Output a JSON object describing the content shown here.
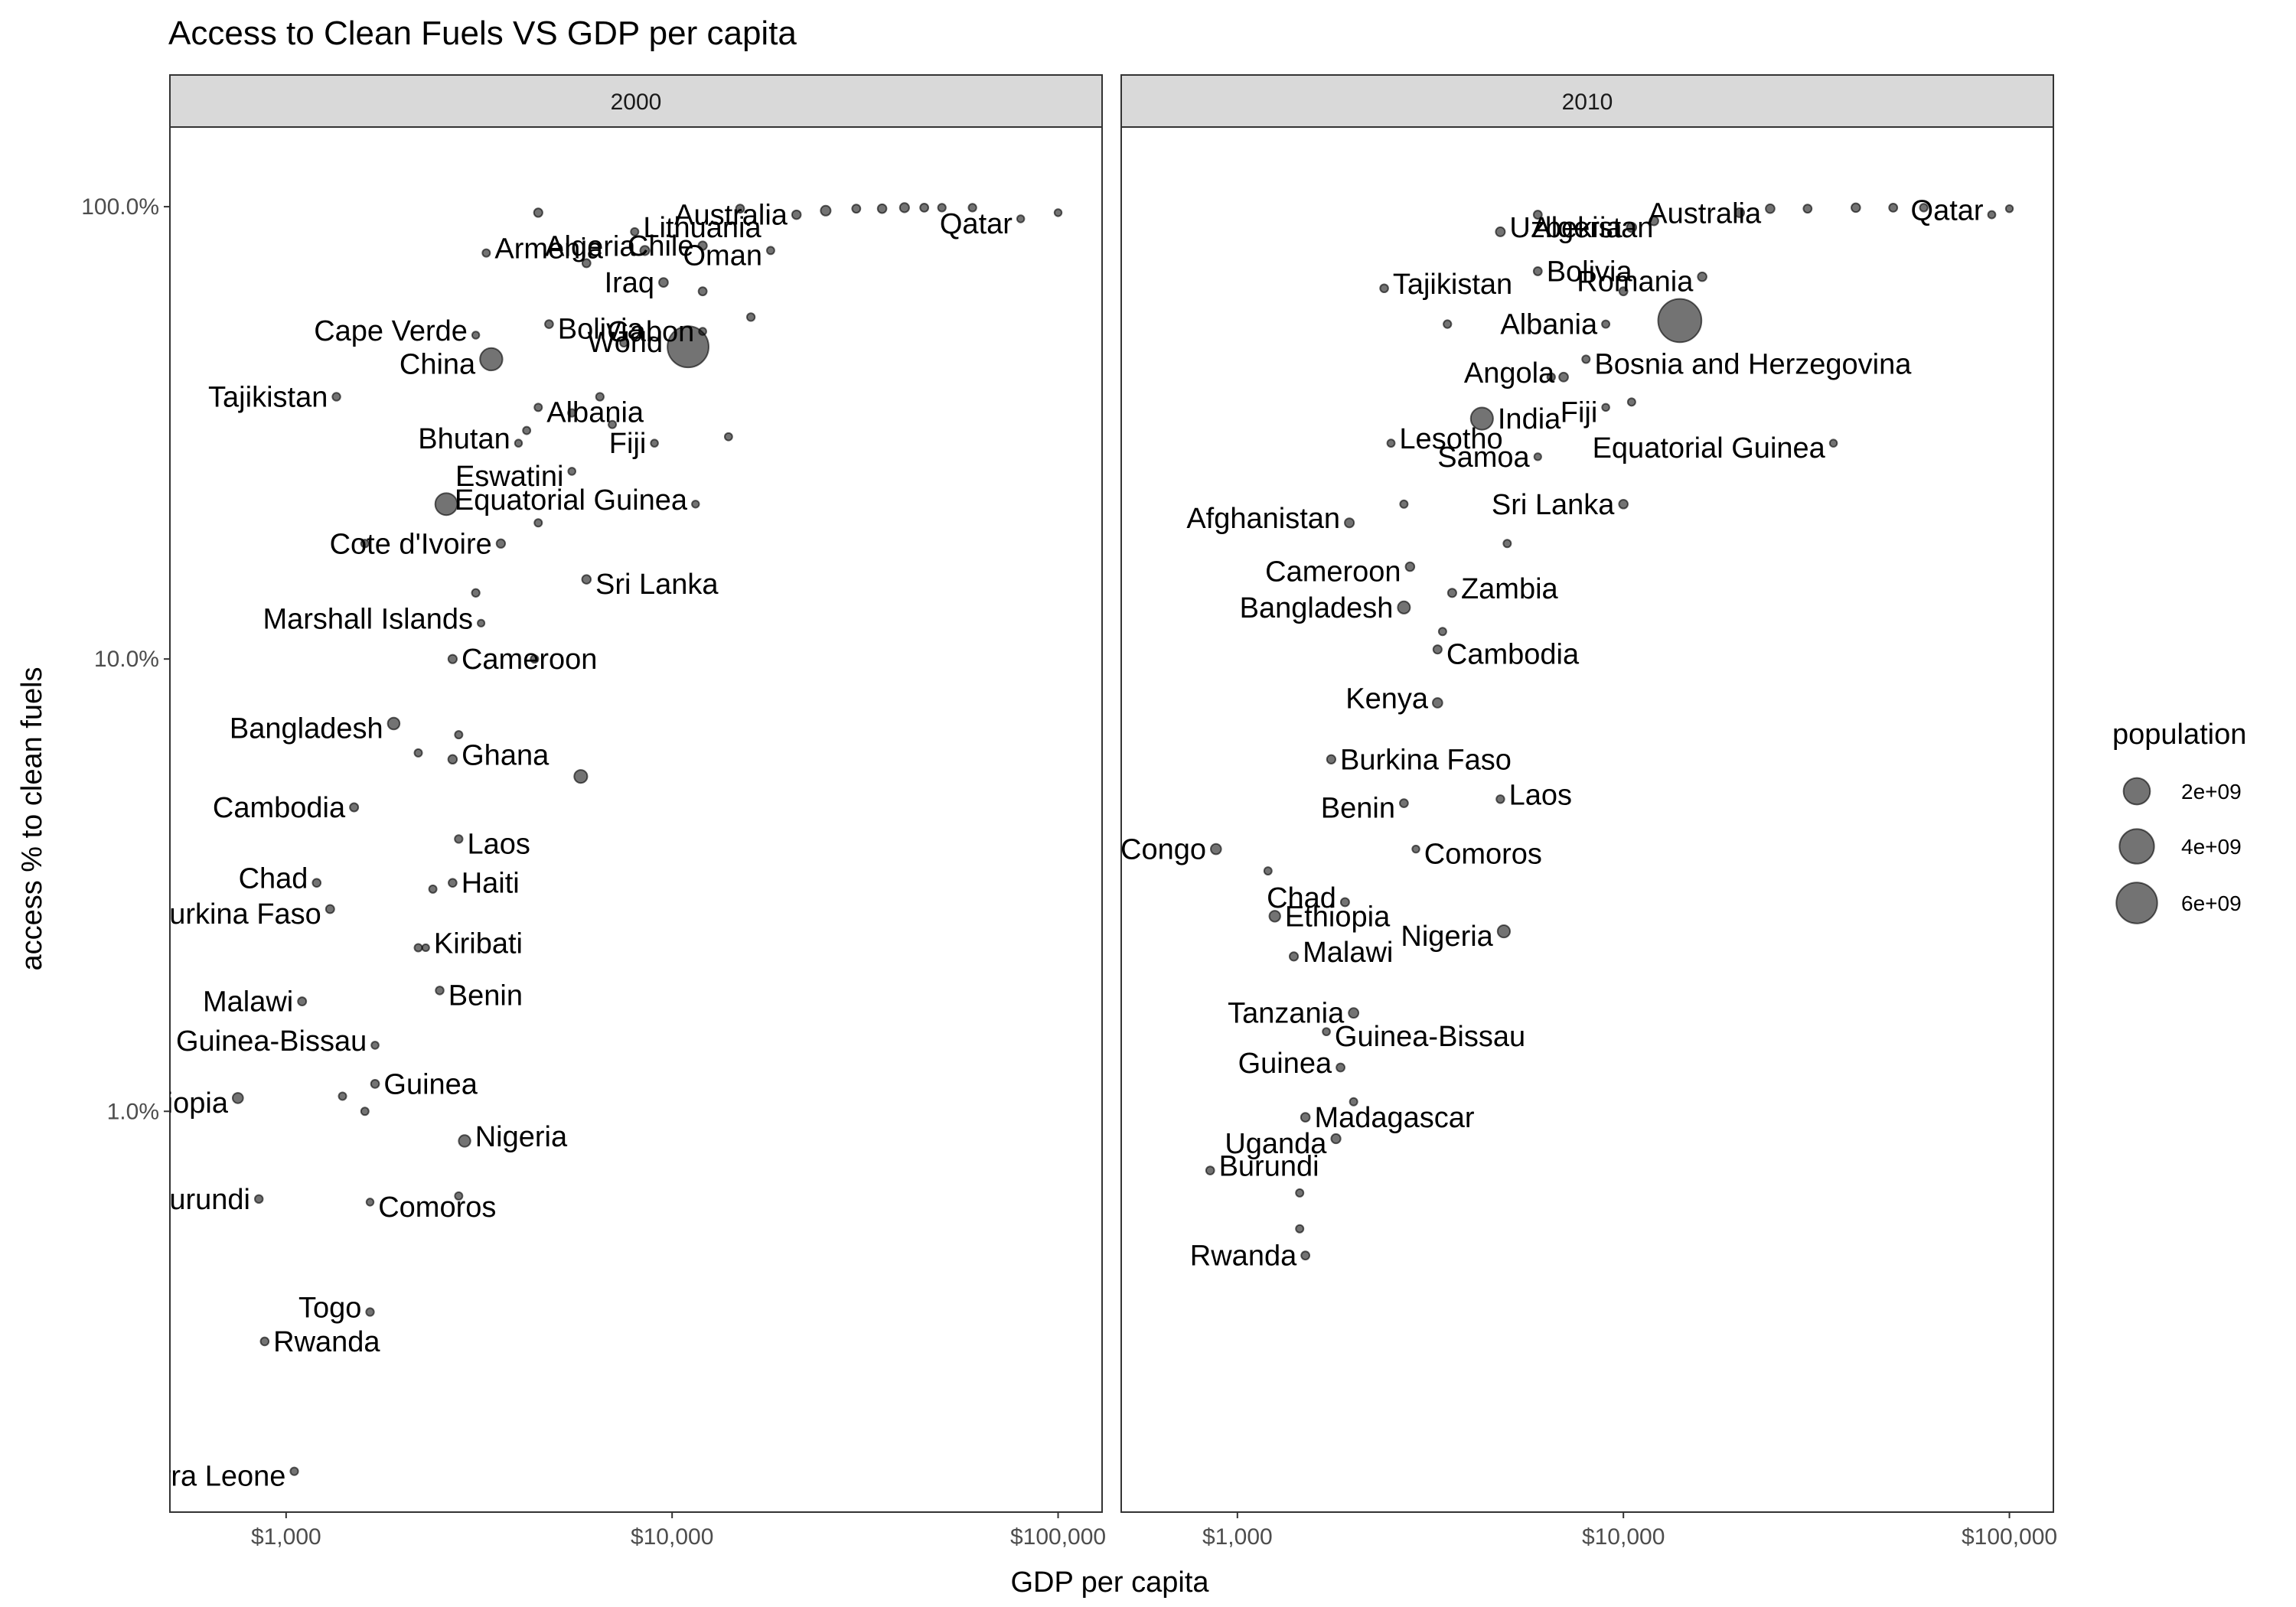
{
  "chart_data": {
    "type": "scatter",
    "title": "Access to Clean Fuels VS GDP per capita",
    "xlabel": "GDP per capita",
    "ylabel": "access % to clean fuels",
    "x_scale": "log",
    "y_scale": "log",
    "xlim": [
      500,
      130000
    ],
    "ylim": [
      0.13,
      150
    ],
    "x_ticks": [
      {
        "value": 1000,
        "label": "$1,000"
      },
      {
        "value": 10000,
        "label": "$10,000"
      },
      {
        "value": 100000,
        "label": "$100,000"
      }
    ],
    "y_ticks": [
      {
        "value": 1,
        "label": "1.0%"
      },
      {
        "value": 10,
        "label": "10.0%"
      },
      {
        "value": 100,
        "label": "100.0%"
      }
    ],
    "grid": false,
    "legend": {
      "title": "population",
      "placement": "right",
      "entries": [
        {
          "label": "2e+09",
          "value": 2000000000
        },
        {
          "label": "4e+09",
          "value": 4000000000
        },
        {
          "label": "6e+09",
          "value": 6000000000
        }
      ]
    },
    "panels": [
      {
        "strip": "2000",
        "points": [
          {
            "label": "Lithuania",
            "x": 8000,
            "y": 88,
            "size": 3500000
          },
          {
            "label": "Australia",
            "x": 21000,
            "y": 96,
            "size": 19000000
          },
          {
            "label": "Qatar",
            "x": 80000,
            "y": 94,
            "size": 600000
          },
          {
            "label": "Algeria",
            "x": 8500,
            "y": 80,
            "size": 31000000
          },
          {
            "label": "Chile",
            "x": 12000,
            "y": 82,
            "size": 15000000
          },
          {
            "label": "Oman",
            "x": 18000,
            "y": 80,
            "size": 2300000
          },
          {
            "label": "Armenia",
            "x": 3300,
            "y": 79,
            "size": 3100000
          },
          {
            "label": "Iraq",
            "x": 9500,
            "y": 68,
            "size": 23000000
          },
          {
            "label": "Bolivia",
            "x": 4800,
            "y": 55,
            "size": 8300000
          },
          {
            "label": "Cape Verde",
            "x": 3100,
            "y": 52,
            "size": 450000
          },
          {
            "label": "Gabon",
            "x": 12000,
            "y": 53,
            "size": 1200000
          },
          {
            "label": "China",
            "x": 3400,
            "y": 46,
            "size": 1260000000
          },
          {
            "label": "World",
            "x": 11000,
            "y": 49,
            "size": 6100000000
          },
          {
            "label": "Tajikistan",
            "x": 1350,
            "y": 38,
            "size": 6200000
          },
          {
            "label": "Albania",
            "x": 4500,
            "y": 36,
            "size": 3100000
          },
          {
            "label": "Bhutan",
            "x": 4000,
            "y": 30,
            "size": 590000
          },
          {
            "label": "Fiji",
            "x": 9000,
            "y": 30,
            "size": 800000
          },
          {
            "label": "Eswatini",
            "x": 5500,
            "y": 26,
            "size": 1000000
          },
          {
            "label": "Equatorial Guinea",
            "x": 11500,
            "y": 22,
            "size": 500000
          },
          {
            "label": "Cote d'Ivoire",
            "x": 3600,
            "y": 18,
            "size": 16000000
          },
          {
            "label": "Sri Lanka",
            "x": 6000,
            "y": 15,
            "size": 19000000
          },
          {
            "label": "Marshall Islands",
            "x": 3200,
            "y": 12,
            "size": 50000
          },
          {
            "label": "Cameroon",
            "x": 2700,
            "y": 10,
            "size": 15000000
          },
          {
            "label": "Bangladesh",
            "x": 1900,
            "y": 7.2,
            "size": 130000000
          },
          {
            "label": "Ghana",
            "x": 2700,
            "y": 6,
            "size": 19000000
          },
          {
            "label": "Cambodia",
            "x": 1500,
            "y": 4.7,
            "size": 12000000
          },
          {
            "label": "Laos",
            "x": 2800,
            "y": 4,
            "size": 5300000
          },
          {
            "label": "Chad",
            "x": 1200,
            "y": 3.2,
            "size": 8300000
          },
          {
            "label": "Haiti",
            "x": 2700,
            "y": 3.2,
            "size": 8400000
          },
          {
            "label": "Burkina Faso",
            "x": 1300,
            "y": 2.8,
            "size": 11600000
          },
          {
            "label": "Kiribati",
            "x": 2300,
            "y": 2.3,
            "size": 85000
          },
          {
            "label": "Malawi",
            "x": 1100,
            "y": 1.75,
            "size": 11000000
          },
          {
            "label": "Benin",
            "x": 2500,
            "y": 1.85,
            "size": 6900000
          },
          {
            "label": "Guinea-Bissau",
            "x": 1700,
            "y": 1.4,
            "size": 1200000
          },
          {
            "label": "Guinea",
            "x": 1700,
            "y": 1.15,
            "size": 8800000
          },
          {
            "label": "Ethiopia",
            "x": 750,
            "y": 1.07,
            "size": 66000000
          },
          {
            "label": "Nigeria",
            "x": 2900,
            "y": 0.86,
            "size": 122000000
          },
          {
            "label": "Burundi",
            "x": 850,
            "y": 0.64,
            "size": 6300000
          },
          {
            "label": "Comoros",
            "x": 1650,
            "y": 0.63,
            "size": 540000
          },
          {
            "label": "Togo",
            "x": 1650,
            "y": 0.36,
            "size": 5000000
          },
          {
            "label": "Rwanda",
            "x": 880,
            "y": 0.31,
            "size": 8000000
          },
          {
            "label": "Sierra Leone",
            "x": 1050,
            "y": 0.16,
            "size": 4100000
          },
          {
            "x": 30000,
            "y": 99,
            "size": 10000000
          },
          {
            "x": 35000,
            "y": 99,
            "size": 20000000
          },
          {
            "x": 40000,
            "y": 99.5,
            "size": 30000000
          },
          {
            "x": 45000,
            "y": 99.5,
            "size": 10000000
          },
          {
            "x": 50000,
            "y": 99.5,
            "size": 5000000
          },
          {
            "x": 60000,
            "y": 99.5,
            "size": 5000000
          },
          {
            "x": 25000,
            "y": 98,
            "size": 50000000
          },
          {
            "x": 15000,
            "y": 99,
            "size": 10000000
          },
          {
            "x": 100000,
            "y": 97,
            "size": 500000
          },
          {
            "x": 4500,
            "y": 97,
            "size": 15000000
          },
          {
            "x": 6000,
            "y": 75,
            "size": 10000000
          },
          {
            "x": 12000,
            "y": 65,
            "size": 10000000
          },
          {
            "x": 16000,
            "y": 57,
            "size": 5000000
          },
          {
            "x": 7500,
            "y": 50,
            "size": 4000000
          },
          {
            "x": 6500,
            "y": 38,
            "size": 5000000
          },
          {
            "x": 5500,
            "y": 35,
            "size": 4000000
          },
          {
            "x": 7000,
            "y": 33,
            "size": 3000000
          },
          {
            "x": 4200,
            "y": 32,
            "size": 2000000
          },
          {
            "x": 14000,
            "y": 31,
            "size": 2000000
          },
          {
            "x": 4500,
            "y": 20,
            "size": 3000000
          },
          {
            "x": 1600,
            "y": 18,
            "size": 5000000
          },
          {
            "x": 2600,
            "y": 22,
            "size": 1200000000
          },
          {
            "x": 3100,
            "y": 14,
            "size": 5000000
          },
          {
            "x": 4400,
            "y": 10,
            "size": 4000000
          },
          {
            "x": 5800,
            "y": 5.5,
            "size": 200000000
          },
          {
            "x": 2800,
            "y": 6.8,
            "size": 3000000
          },
          {
            "x": 2200,
            "y": 6.2,
            "size": 3000000
          },
          {
            "x": 2400,
            "y": 3.1,
            "size": 3000000
          },
          {
            "x": 2200,
            "y": 2.3,
            "size": 3000000
          },
          {
            "x": 1400,
            "y": 1.08,
            "size": 3000000
          },
          {
            "x": 1600,
            "y": 1.0,
            "size": 3000000
          },
          {
            "x": 2800,
            "y": 0.65,
            "size": 3000000
          }
        ]
      },
      {
        "strip": "2010",
        "points": [
          {
            "label": "Uzbekistan",
            "x": 4800,
            "y": 88,
            "size": 28000000
          },
          {
            "label": "Algeria",
            "x": 10500,
            "y": 90,
            "size": 36000000
          },
          {
            "label": "Australia",
            "x": 24000,
            "y": 99,
            "size": 22000000
          },
          {
            "label": "Qatar",
            "x": 90000,
            "y": 96,
            "size": 1800000
          },
          {
            "label": "Bolivia",
            "x": 6000,
            "y": 72,
            "size": 10000000
          },
          {
            "label": "Romania",
            "x": 16000,
            "y": 70,
            "size": 20000000
          },
          {
            "label": "Tajikistan",
            "x": 2400,
            "y": 66,
            "size": 7500000
          },
          {
            "label": "Albania",
            "x": 9000,
            "y": 55,
            "size": 2900000
          },
          {
            "label": "Bosnia and Herzegovina",
            "x": 8000,
            "y": 46,
            "size": 3700000
          },
          {
            "label": "Angola",
            "x": 7000,
            "y": 42,
            "size": 23000000
          },
          {
            "label": "India",
            "x": 4300,
            "y": 34,
            "size": 1230000000
          },
          {
            "label": "Fiji",
            "x": 9000,
            "y": 36,
            "size": 860000
          },
          {
            "label": "Lesotho",
            "x": 2500,
            "y": 30,
            "size": 2000000
          },
          {
            "label": "Samoa",
            "x": 6000,
            "y": 28,
            "size": 190000
          },
          {
            "label": "Equatorial Guinea",
            "x": 35000,
            "y": 30,
            "size": 950000
          },
          {
            "label": "Afghanistan",
            "x": 1950,
            "y": 20,
            "size": 29000000
          },
          {
            "label": "Sri Lanka",
            "x": 10000,
            "y": 22,
            "size": 20000000
          },
          {
            "label": "Cameroon",
            "x": 2800,
            "y": 16,
            "size": 20000000
          },
          {
            "label": "Zambia",
            "x": 3600,
            "y": 14,
            "size": 13600000
          },
          {
            "label": "Bangladesh",
            "x": 2700,
            "y": 13,
            "size": 150000000
          },
          {
            "label": "Cambodia",
            "x": 3300,
            "y": 10.5,
            "size": 14000000
          },
          {
            "label": "Kenya",
            "x": 3300,
            "y": 8,
            "size": 41000000
          },
          {
            "label": "Burkina Faso",
            "x": 1750,
            "y": 6,
            "size": 15600000
          },
          {
            "label": "Benin",
            "x": 2700,
            "y": 4.8,
            "size": 9200000
          },
          {
            "label": "Laos",
            "x": 4800,
            "y": 4.9,
            "size": 6300000
          },
          {
            "label": "Congo",
            "x": 880,
            "y": 3.8,
            "size": 64000000
          },
          {
            "label": "Comoros",
            "x": 2900,
            "y": 3.8,
            "size": 690000
          },
          {
            "label": "Chad",
            "x": 1900,
            "y": 2.9,
            "size": 11900000
          },
          {
            "label": "Ethiopia",
            "x": 1250,
            "y": 2.7,
            "size": 87000000
          },
          {
            "label": "Nigeria",
            "x": 4900,
            "y": 2.5,
            "size": 158000000
          },
          {
            "label": "Malawi",
            "x": 1400,
            "y": 2.2,
            "size": 14500000
          },
          {
            "label": "Tanzania",
            "x": 2000,
            "y": 1.65,
            "size": 45000000
          },
          {
            "label": "Guinea-Bissau",
            "x": 1700,
            "y": 1.5,
            "size": 1500000
          },
          {
            "label": "Guinea",
            "x": 1850,
            "y": 1.25,
            "size": 10200000
          },
          {
            "label": "Madagascar",
            "x": 1500,
            "y": 0.97,
            "size": 21000000
          },
          {
            "label": "Uganda",
            "x": 1800,
            "y": 0.87,
            "size": 32000000
          },
          {
            "label": "Burundi",
            "x": 850,
            "y": 0.74,
            "size": 9000000
          },
          {
            "label": "Rwanda",
            "x": 1500,
            "y": 0.48,
            "size": 10000000
          },
          {
            "x": 14000,
            "y": 56,
            "size": 6900000000
          },
          {
            "x": 30000,
            "y": 99,
            "size": 10000000
          },
          {
            "x": 40000,
            "y": 99.5,
            "size": 20000000
          },
          {
            "x": 50000,
            "y": 99.5,
            "size": 10000000
          },
          {
            "x": 60000,
            "y": 99.5,
            "size": 5000000
          },
          {
            "x": 100000,
            "y": 99,
            "size": 500000
          },
          {
            "x": 20000,
            "y": 97,
            "size": 30000000
          },
          {
            "x": 12000,
            "y": 93,
            "size": 20000000
          },
          {
            "x": 6000,
            "y": 96,
            "size": 10000000
          },
          {
            "x": 10000,
            "y": 65,
            "size": 10000000
          },
          {
            "x": 3500,
            "y": 55,
            "size": 5000000
          },
          {
            "x": 6500,
            "y": 42,
            "size": 5000000
          },
          {
            "x": 10500,
            "y": 37,
            "size": 3000000
          },
          {
            "x": 2700,
            "y": 22,
            "size": 3000000
          },
          {
            "x": 5000,
            "y": 18,
            "size": 3000000
          },
          {
            "x": 3400,
            "y": 11.5,
            "size": 3000000
          },
          {
            "x": 1200,
            "y": 3.4,
            "size": 3000000
          },
          {
            "x": 2000,
            "y": 1.05,
            "size": 3000000
          },
          {
            "x": 1450,
            "y": 0.66,
            "size": 3000000
          },
          {
            "x": 1450,
            "y": 0.55,
            "size": 3000000
          }
        ]
      }
    ]
  }
}
